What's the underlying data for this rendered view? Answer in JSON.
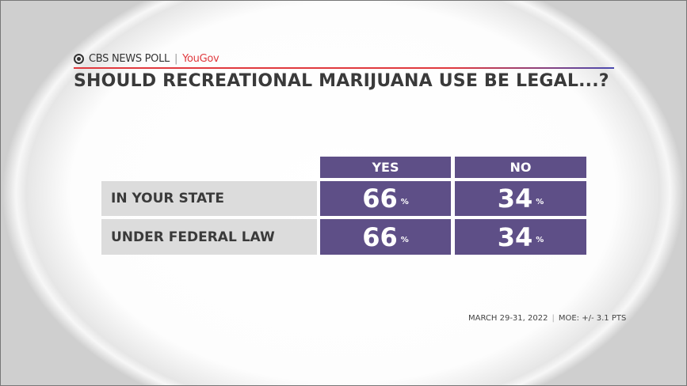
{
  "header": {
    "brand": "CBS NEWS POLL",
    "partner": "YouGov",
    "title": "SHOULD RECREATIONAL MARIJUANA USE BE LEGAL...?"
  },
  "colors": {
    "cell": "#5e4f87",
    "label_bg": "#dcdcdc",
    "accent_red": "#e0393e"
  },
  "chart_data": {
    "type": "table",
    "title": "SHOULD RECREATIONAL MARIJUANA USE BE LEGAL...?",
    "columns": [
      "YES",
      "NO"
    ],
    "rows": [
      {
        "label": "IN YOUR STATE",
        "values": [
          "66",
          "34"
        ]
      },
      {
        "label": "UNDER FEDERAL LAW",
        "values": [
          "66",
          "34"
        ]
      }
    ],
    "unit": "%"
  },
  "footer": {
    "date": "MARCH 29-31, 2022",
    "moe": "MOE: +/- 3.1 PTS"
  }
}
